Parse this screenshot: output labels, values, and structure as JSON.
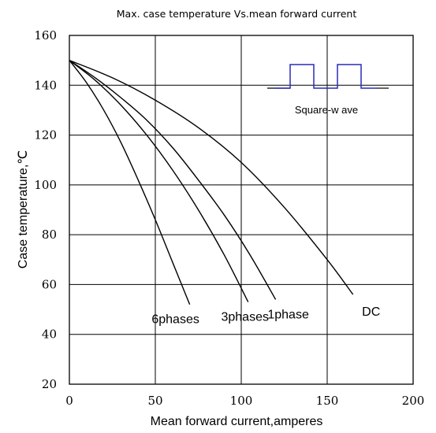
{
  "chart_data": {
    "type": "line",
    "title": "Max. case temperature Vs.mean forward current",
    "xlabel": "Mean forward  current,amperes",
    "ylabel": "Case temperature,℃",
    "xlim": [
      0,
      200
    ],
    "ylim": [
      20,
      160
    ],
    "xticks": [
      "0",
      "50",
      "100",
      "150",
      "200"
    ],
    "yticks": [
      "20",
      "40",
      "60",
      "80",
      "100",
      "120",
      "140",
      "160"
    ],
    "grid": true,
    "series": [
      {
        "name": "6phases",
        "x": [
          0,
          10,
          20,
          30,
          40,
          50,
          60,
          70
        ],
        "y": [
          150,
          141,
          130,
          117,
          102,
          86,
          69,
          52
        ]
      },
      {
        "name": "3phases",
        "x": [
          0,
          15,
          30,
          45,
          60,
          75,
          90,
          104
        ],
        "y": [
          150,
          142,
          132,
          120,
          106,
          90,
          72,
          53
        ]
      },
      {
        "name": "1phase",
        "x": [
          0,
          15,
          30,
          45,
          60,
          75,
          90,
          105,
          120
        ],
        "y": [
          150,
          143,
          135,
          126,
          115,
          102,
          88,
          72,
          54
        ]
      },
      {
        "name": "DC",
        "x": [
          0,
          25,
          50,
          75,
          100,
          125,
          150,
          165
        ],
        "y": [
          150,
          143,
          134,
          123,
          109,
          91,
          70,
          56
        ]
      }
    ],
    "annotation": "Square-w ave",
    "colors": {
      "curves": "#000000",
      "grid": "#000000",
      "square_wave": "#2a2ab8"
    }
  }
}
